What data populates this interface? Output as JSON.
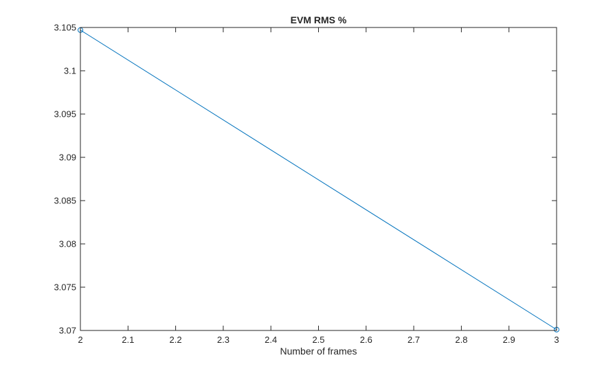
{
  "chart_data": {
    "type": "line",
    "title": "EVM RMS %",
    "xlabel": "Number of frames",
    "ylabel": "",
    "xlim": [
      2,
      3
    ],
    "ylim": [
      3.07,
      3.105
    ],
    "xticks": [
      2,
      2.1,
      2.2,
      2.3,
      2.4,
      2.5,
      2.6,
      2.7,
      2.8,
      2.9,
      3
    ],
    "xtick_labels": [
      "2",
      "2.1",
      "2.2",
      "2.3",
      "2.4",
      "2.5",
      "2.6",
      "2.7",
      "2.8",
      "2.9",
      "3"
    ],
    "yticks": [
      3.07,
      3.075,
      3.08,
      3.085,
      3.09,
      3.095,
      3.1,
      3.105
    ],
    "ytick_labels": [
      "3.07",
      "3.075",
      "3.08",
      "3.085",
      "3.09",
      "3.095",
      "3.1",
      "3.105"
    ],
    "grid": false,
    "box": true,
    "marker": "circle",
    "line_color": "#0072BD",
    "series": [
      {
        "x": [
          2,
          3
        ],
        "y": [
          3.1047,
          3.0701
        ]
      }
    ]
  }
}
